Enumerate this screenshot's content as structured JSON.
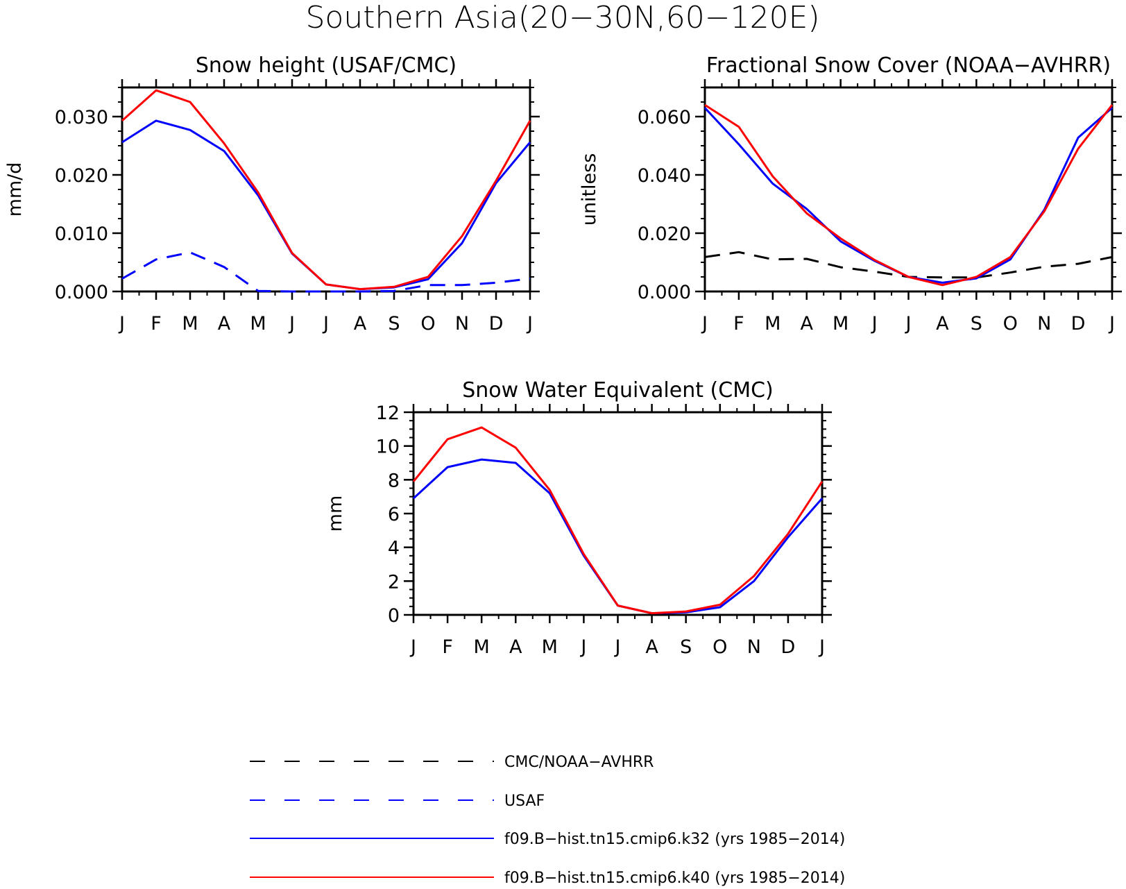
{
  "figure": {
    "title": "Southern Asia(20−30N,60−120E)"
  },
  "colors": {
    "obs": "#000000",
    "usaf": "#0000ff",
    "k32": "#0000ff",
    "k40": "#ff0000"
  },
  "legend": [
    {
      "key": "obs",
      "label": "CMC/NOAA−AVHRR",
      "color": "#000000",
      "dashed": true
    },
    {
      "key": "usaf",
      "label": "USAF",
      "color": "#0000ff",
      "dashed": true
    },
    {
      "key": "k32",
      "label": "f09.B−hist.tn15.cmip6.k32 (yrs 1985−2014)",
      "color": "#0000ff",
      "dashed": false
    },
    {
      "key": "k40",
      "label": "f09.B−hist.tn15.cmip6.k40 (yrs 1985−2014)",
      "color": "#ff0000",
      "dashed": false
    }
  ],
  "chart_data": [
    {
      "type": "line",
      "title": "Snow height (USAF/CMC)",
      "ylabel": "mm/d",
      "xlabel": "",
      "categories": [
        "J",
        "F",
        "M",
        "A",
        "M",
        "J",
        "J",
        "A",
        "S",
        "O",
        "N",
        "D",
        "J"
      ],
      "ylim": [
        0,
        0.035
      ],
      "yticks": [
        0,
        0.01,
        0.02,
        0.03
      ],
      "ytick_labels": [
        "0.000",
        "0.010",
        "0.020",
        "0.030"
      ],
      "yminor": 0.0025,
      "series": [
        {
          "name": "CMC/NOAA−AVHRR",
          "key": "obs",
          "dashed": true,
          "values": [
            0,
            0,
            0,
            0,
            0,
            0,
            0,
            0,
            0,
            0,
            0,
            0,
            0
          ]
        },
        {
          "name": "USAF",
          "key": "usaf",
          "dashed": true,
          "values": [
            0.0022,
            0.0055,
            0.0067,
            0.0042,
            0.0001,
            0,
            0,
            0,
            0.0001,
            0.0011,
            0.0011,
            0.0015,
            0.0022
          ]
        },
        {
          "name": "f09.B−hist.tn15.cmip6.k32 (yrs 1985−2014)",
          "key": "k32",
          "dashed": false,
          "values": [
            0.0256,
            0.0293,
            0.0277,
            0.0241,
            0.0165,
            0.0065,
            0.0012,
            0.0004,
            0.0007,
            0.0021,
            0.0083,
            0.0186,
            0.0256
          ]
        },
        {
          "name": "f09.B−hist.tn15.cmip6.k40 (yrs 1985−2014)",
          "key": "k40",
          "dashed": false,
          "values": [
            0.0293,
            0.0345,
            0.0325,
            0.0254,
            0.017,
            0.0066,
            0.0012,
            0.0004,
            0.0008,
            0.0025,
            0.0095,
            0.019,
            0.0293
          ]
        }
      ]
    },
    {
      "type": "line",
      "title": "Fractional Snow Cover (NOAA−AVHRR)",
      "ylabel": "unitless",
      "xlabel": "",
      "categories": [
        "J",
        "F",
        "M",
        "A",
        "M",
        "J",
        "J",
        "A",
        "S",
        "O",
        "N",
        "D",
        "J"
      ],
      "ylim": [
        0,
        0.07
      ],
      "yticks": [
        0,
        0.02,
        0.04,
        0.06
      ],
      "ytick_labels": [
        "0.000",
        "0.020",
        "0.040",
        "0.060"
      ],
      "yminor": 0.005,
      "series": [
        {
          "name": "CMC/NOAA−AVHRR",
          "key": "obs",
          "dashed": true,
          "values": [
            0.0118,
            0.0135,
            0.011,
            0.0112,
            0.0083,
            0.0068,
            0.005,
            0.0048,
            0.0048,
            0.0065,
            0.0085,
            0.0095,
            0.0118
          ]
        },
        {
          "name": "f09.B−hist.tn15.cmip6.k32 (yrs 1985−2014)",
          "key": "k32",
          "dashed": false,
          "values": [
            0.063,
            0.0505,
            0.037,
            0.0283,
            0.0172,
            0.0105,
            0.005,
            0.003,
            0.0045,
            0.011,
            0.028,
            0.0528,
            0.063
          ]
        },
        {
          "name": "f09.B−hist.tn15.cmip6.k40 (yrs 1985−2014)",
          "key": "k40",
          "dashed": false,
          "values": [
            0.064,
            0.0565,
            0.0395,
            0.0268,
            0.0182,
            0.0108,
            0.005,
            0.0022,
            0.005,
            0.0118,
            0.0275,
            0.049,
            0.064
          ]
        }
      ]
    },
    {
      "type": "line",
      "title": "Snow Water Equivalent (CMC)",
      "ylabel": "mm",
      "xlabel": "",
      "categories": [
        "J",
        "F",
        "M",
        "A",
        "M",
        "J",
        "J",
        "A",
        "S",
        "O",
        "N",
        "D",
        "J"
      ],
      "ylim": [
        0,
        12
      ],
      "yticks": [
        0,
        2,
        4,
        6,
        8,
        10,
        12
      ],
      "ytick_labels": [
        "0",
        "2",
        "4",
        "6",
        "8",
        "10",
        "12"
      ],
      "yminor": 0.5,
      "series": [
        {
          "name": "CMC/NOAA−AVHRR",
          "key": "obs",
          "dashed": true,
          "values": [
            0,
            0,
            0,
            0,
            0,
            0,
            0,
            0,
            0,
            0,
            0,
            0,
            0
          ]
        },
        {
          "name": "f09.B−hist.tn15.cmip6.k32 (yrs 1985−2014)",
          "key": "k32",
          "dashed": false,
          "values": [
            6.9,
            8.75,
            9.2,
            9.0,
            7.2,
            3.5,
            0.55,
            0.1,
            0.15,
            0.45,
            2.0,
            4.6,
            6.9
          ]
        },
        {
          "name": "f09.B−hist.tn15.cmip6.k40 (yrs 1985−2014)",
          "key": "k40",
          "dashed": false,
          "values": [
            7.9,
            10.4,
            11.1,
            9.9,
            7.4,
            3.6,
            0.55,
            0.1,
            0.2,
            0.6,
            2.3,
            4.8,
            7.9
          ]
        }
      ]
    }
  ]
}
